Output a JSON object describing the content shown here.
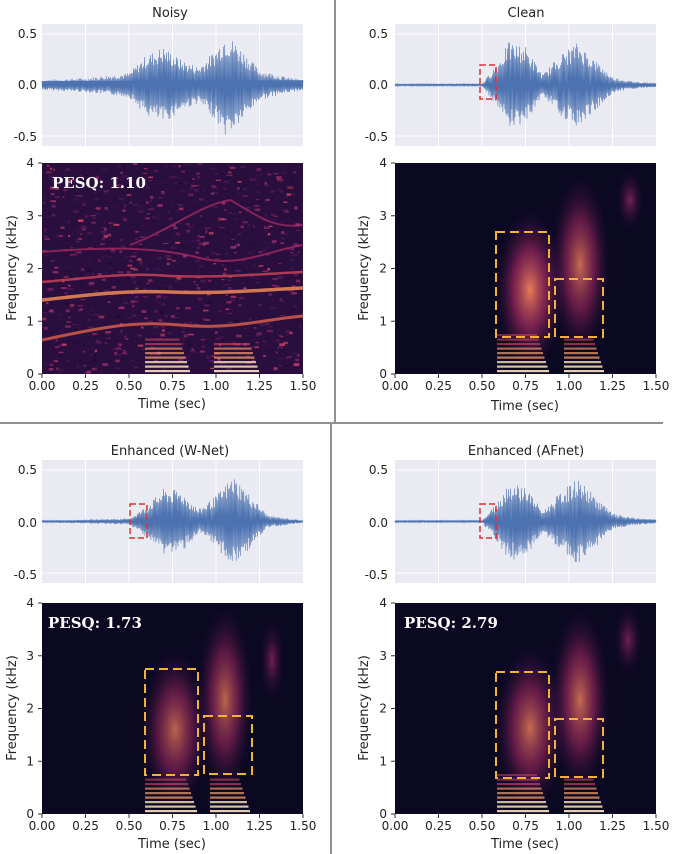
{
  "chart_data": [
    {
      "type": "line",
      "title": "Noisy",
      "xlim": [
        0,
        1.5
      ],
      "ylim": [
        -0.5,
        0.5
      ],
      "y_ticks": [
        "0.5",
        "0.0",
        "-0.5"
      ],
      "description_series": [
        {
          "name": "",
          "x": [
            0,
            0.25,
            0.5,
            0.6,
            0.7,
            0.8,
            0.9,
            1.0,
            1.05,
            1.1,
            1.25,
            1.4,
            1.5
          ],
          "values": [
            0.05,
            0.07,
            0.12,
            0.3,
            0.38,
            0.25,
            0.18,
            0.35,
            0.5,
            0.45,
            0.15,
            0.08,
            0.05
          ]
        }
      ]
    },
    {
      "type": "heatmap",
      "xlabel": "Time (sec)",
      "ylabel": "Frequency (kHz)",
      "xlim": [
        0,
        1.5
      ],
      "ylim": [
        0,
        4
      ],
      "x_ticks": [
        "0.00",
        "0.25",
        "0.50",
        "0.75",
        "1.00",
        "1.25",
        "1.50"
      ],
      "y_ticks": [
        "0",
        "1",
        "2",
        "3",
        "4"
      ],
      "annotation": "PESQ: 1.10"
    },
    {
      "type": "line",
      "title": "Clean",
      "xlim": [
        0,
        1.5
      ],
      "ylim": [
        -0.5,
        0.5
      ],
      "y_ticks": [
        "0.5",
        "0.0",
        "-0.5"
      ],
      "series": [
        {
          "name": "",
          "x": [
            0,
            0.5,
            0.6,
            0.65,
            0.75,
            0.85,
            0.95,
            1.05,
            1.15,
            1.25,
            1.35,
            1.5
          ],
          "values": [
            0.01,
            0.01,
            0.25,
            0.42,
            0.38,
            0.1,
            0.3,
            0.42,
            0.25,
            0.08,
            0.04,
            0.02
          ]
        }
      ]
    },
    {
      "type": "heatmap",
      "xlabel": "Time (sec)",
      "ylabel": "Frequency (kHz)",
      "xlim": [
        0,
        1.5
      ],
      "ylim": [
        0,
        4
      ],
      "x_ticks": [
        "0.00",
        "0.25",
        "0.50",
        "0.75",
        "1.00",
        "1.25",
        "1.50"
      ],
      "y_ticks": [
        "0",
        "1",
        "2",
        "3",
        "4"
      ]
    },
    {
      "type": "line",
      "title": "Enhanced (W-Net)",
      "xlim": [
        0,
        1.5
      ],
      "ylim": [
        -0.5,
        0.5
      ],
      "y_ticks": [
        "0.5",
        "0.0",
        "-0.5"
      ],
      "series": [
        {
          "name": "",
          "x": [
            0,
            0.5,
            0.6,
            0.7,
            0.8,
            0.9,
            1.0,
            1.1,
            1.2,
            1.3,
            1.5
          ],
          "values": [
            0.01,
            0.03,
            0.15,
            0.32,
            0.3,
            0.12,
            0.25,
            0.45,
            0.25,
            0.06,
            0.01
          ]
        }
      ]
    },
    {
      "type": "heatmap",
      "xlabel": "Time (sec)",
      "ylabel": "Frequency (kHz)",
      "xlim": [
        0,
        1.5
      ],
      "ylim": [
        0,
        4
      ],
      "x_ticks": [
        "0.00",
        "0.25",
        "0.50",
        "0.75",
        "1.00",
        "1.25",
        "1.50"
      ],
      "y_ticks": [
        "0",
        "1",
        "2",
        "3",
        "4"
      ],
      "annotation": "PESQ: 1.73"
    },
    {
      "type": "line",
      "title": "Enhanced (AFnet)",
      "xlim": [
        0,
        1.5
      ],
      "ylim": [
        -0.5,
        0.5
      ],
      "y_ticks": [
        "0.5",
        "0.0",
        "-0.5"
      ],
      "series": [
        {
          "name": "",
          "x": [
            0,
            0.5,
            0.6,
            0.65,
            0.75,
            0.85,
            0.95,
            1.05,
            1.15,
            1.25,
            1.35,
            1.5
          ],
          "values": [
            0.01,
            0.01,
            0.22,
            0.38,
            0.35,
            0.1,
            0.28,
            0.42,
            0.25,
            0.08,
            0.04,
            0.02
          ]
        }
      ]
    },
    {
      "type": "heatmap",
      "xlabel": "Time (sec)",
      "ylabel": "Frequency (kHz)",
      "xlim": [
        0,
        1.5
      ],
      "ylim": [
        0,
        4
      ],
      "x_ticks": [
        "0.00",
        "0.25",
        "0.50",
        "0.75",
        "1.00",
        "1.25",
        "1.50"
      ],
      "y_ticks": [
        "0",
        "1",
        "2",
        "3",
        "4"
      ],
      "annotation": "PESQ: 2.79"
    }
  ],
  "colors": {
    "waveform": "#4c72b0",
    "wave_bg": "#eaeaf2",
    "spec_bg": "#0a0820",
    "highlight_box": "#f2b233",
    "red_box": "#e03030"
  }
}
